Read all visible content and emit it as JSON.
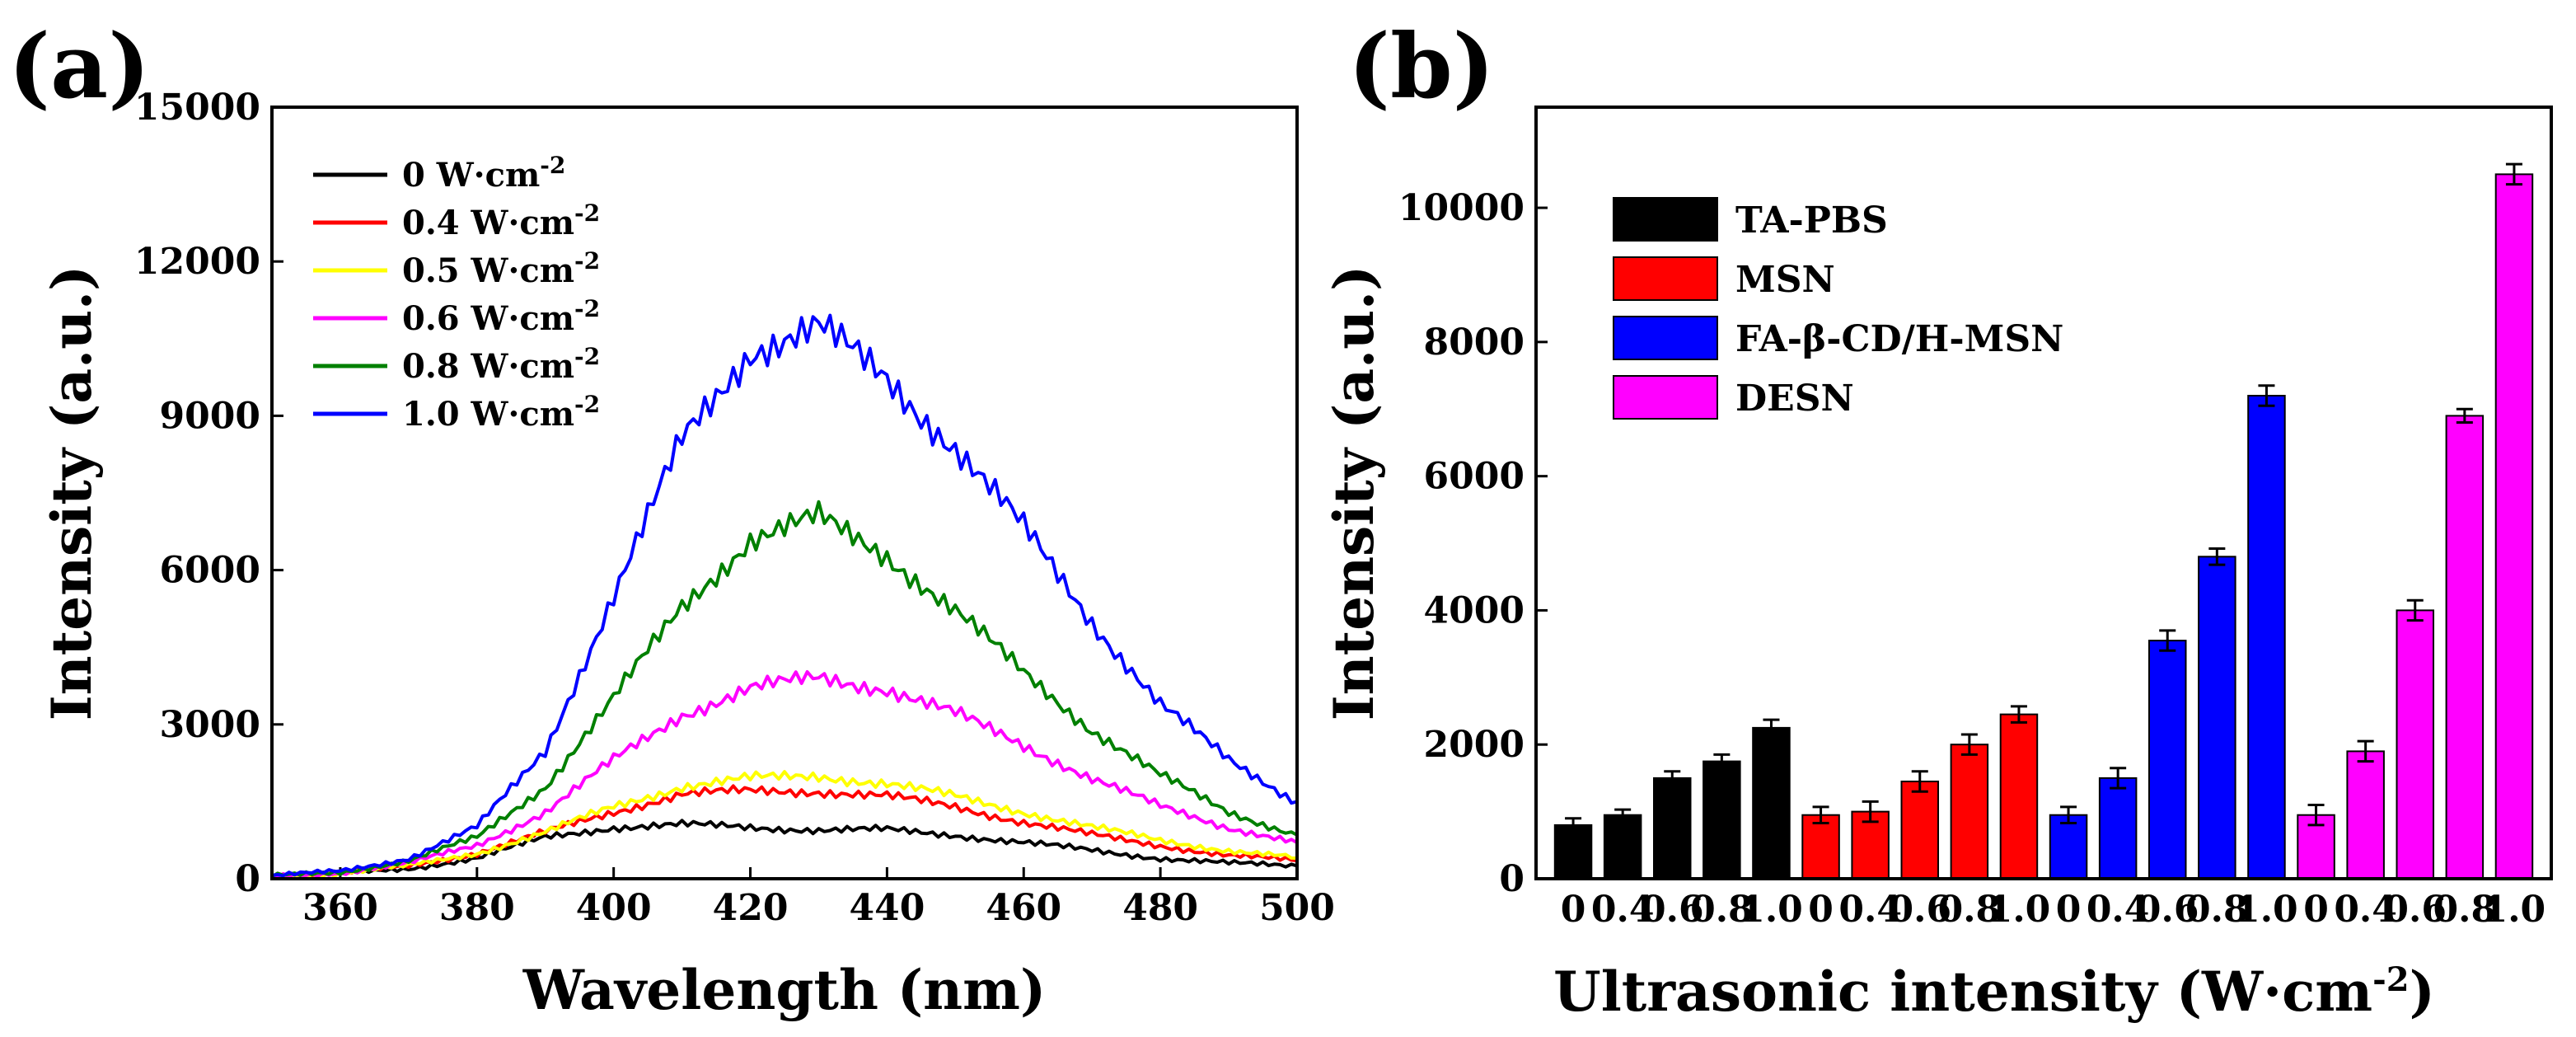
{
  "panels": {
    "a_label": "(a)",
    "b_label": "(b)"
  },
  "colors": {
    "black": "#000000",
    "red": "#ff0000",
    "yellow": "#ffff00",
    "magenta": "#ff00ff",
    "green": "#008000",
    "blue": "#0000ff"
  },
  "chart_data": [
    {
      "type": "line",
      "title": "",
      "xlabel": "Wavelength (nm)",
      "ylabel": "Intensity (a.u.)",
      "xlim": [
        350,
        500
      ],
      "ylim": [
        0,
        15000
      ],
      "xticks": [
        360,
        380,
        400,
        420,
        440,
        460,
        480,
        500
      ],
      "yticks": [
        0,
        3000,
        6000,
        9000,
        12000,
        15000
      ],
      "legend_position": "top-left",
      "x": [
        350,
        360,
        370,
        380,
        390,
        400,
        410,
        420,
        430,
        440,
        450,
        460,
        470,
        480,
        490,
        500
      ],
      "series": [
        {
          "name": "0 W·cm",
          "sup": "-2",
          "color": "#000000",
          "values": [
            50,
            100,
            200,
            400,
            800,
            1000,
            1050,
            1000,
            950,
            950,
            850,
            700,
            550,
            400,
            300,
            250
          ]
        },
        {
          "name": "0.4 W·cm",
          "sup": "-2",
          "color": "#ff0000",
          "values": [
            50,
            100,
            250,
            500,
            900,
            1300,
            1650,
            1700,
            1700,
            1600,
            1400,
            1100,
            850,
            650,
            450,
            350
          ]
        },
        {
          "name": "0.5 W·cm",
          "sup": "-2",
          "color": "#ffff00",
          "values": [
            50,
            100,
            250,
            500,
            900,
            1400,
            1800,
            1950,
            2000,
            1850,
            1600,
            1300,
            1000,
            750,
            550,
            400
          ]
        },
        {
          "name": "0.6 W·cm",
          "sup": "-2",
          "color": "#ff00ff",
          "values": [
            50,
            120,
            300,
            650,
            1300,
            2300,
            3200,
            3700,
            3900,
            3700,
            3200,
            2600,
            1950,
            1400,
            1000,
            700
          ]
        },
        {
          "name": "0.8 W·cm",
          "sup": "-2",
          "color": "#008000",
          "values": [
            50,
            130,
            350,
            800,
            1800,
            3500,
            5300,
            6600,
            7000,
            6300,
            5200,
            4000,
            2900,
            2000,
            1300,
            850
          ]
        },
        {
          "name": "1.0 W·cm",
          "sup": "-2",
          "color": "#0000ff",
          "values": [
            50,
            150,
            400,
            1000,
            2500,
            5500,
            8500,
            10300,
            10700,
            9700,
            8400,
            6800,
            5000,
            3400,
            2300,
            1500
          ]
        }
      ]
    },
    {
      "type": "bar",
      "title": "",
      "xlabel": "Ultrasonic intensity (W·cm",
      "xlabel_sup": "-2",
      "xlabel_close": ")",
      "ylabel": "Intensity (a.u.)",
      "ylim": [
        0,
        11500
      ],
      "yticks": [
        0,
        2000,
        4000,
        6000,
        8000,
        10000
      ],
      "legend_position": "top-left",
      "categories": [
        "0",
        "0.4",
        "0.6",
        "0.8",
        "1.0"
      ],
      "tick_labels": [
        "0",
        "0.4",
        "0.6",
        "0.8",
        "1.0",
        "0",
        "0.4",
        "0.6",
        "0.8",
        "1.0",
        "0",
        "0.4",
        "0.6",
        "0.8",
        "1.0",
        "0",
        "0.4",
        "0.6",
        "0.8",
        "1.0"
      ],
      "series": [
        {
          "name": "TA-PBS",
          "color": "#000000",
          "values": [
            800,
            950,
            1500,
            1750,
            2250
          ],
          "errors": [
            100,
            80,
            100,
            100,
            120
          ]
        },
        {
          "name": "MSN",
          "color": "#ff0000",
          "values": [
            950,
            1000,
            1450,
            2000,
            2450
          ],
          "errors": [
            120,
            150,
            150,
            150,
            120
          ]
        },
        {
          "name": "FA-β-CD/H-MSN",
          "color": "#0000ff",
          "values": [
            950,
            1500,
            3550,
            4800,
            7200
          ],
          "errors": [
            120,
            150,
            150,
            120,
            150
          ]
        },
        {
          "name": "DESN",
          "color": "#ff00ff",
          "values": [
            950,
            1900,
            4000,
            6900,
            10500
          ],
          "errors": [
            150,
            150,
            150,
            100,
            150
          ]
        }
      ]
    }
  ]
}
